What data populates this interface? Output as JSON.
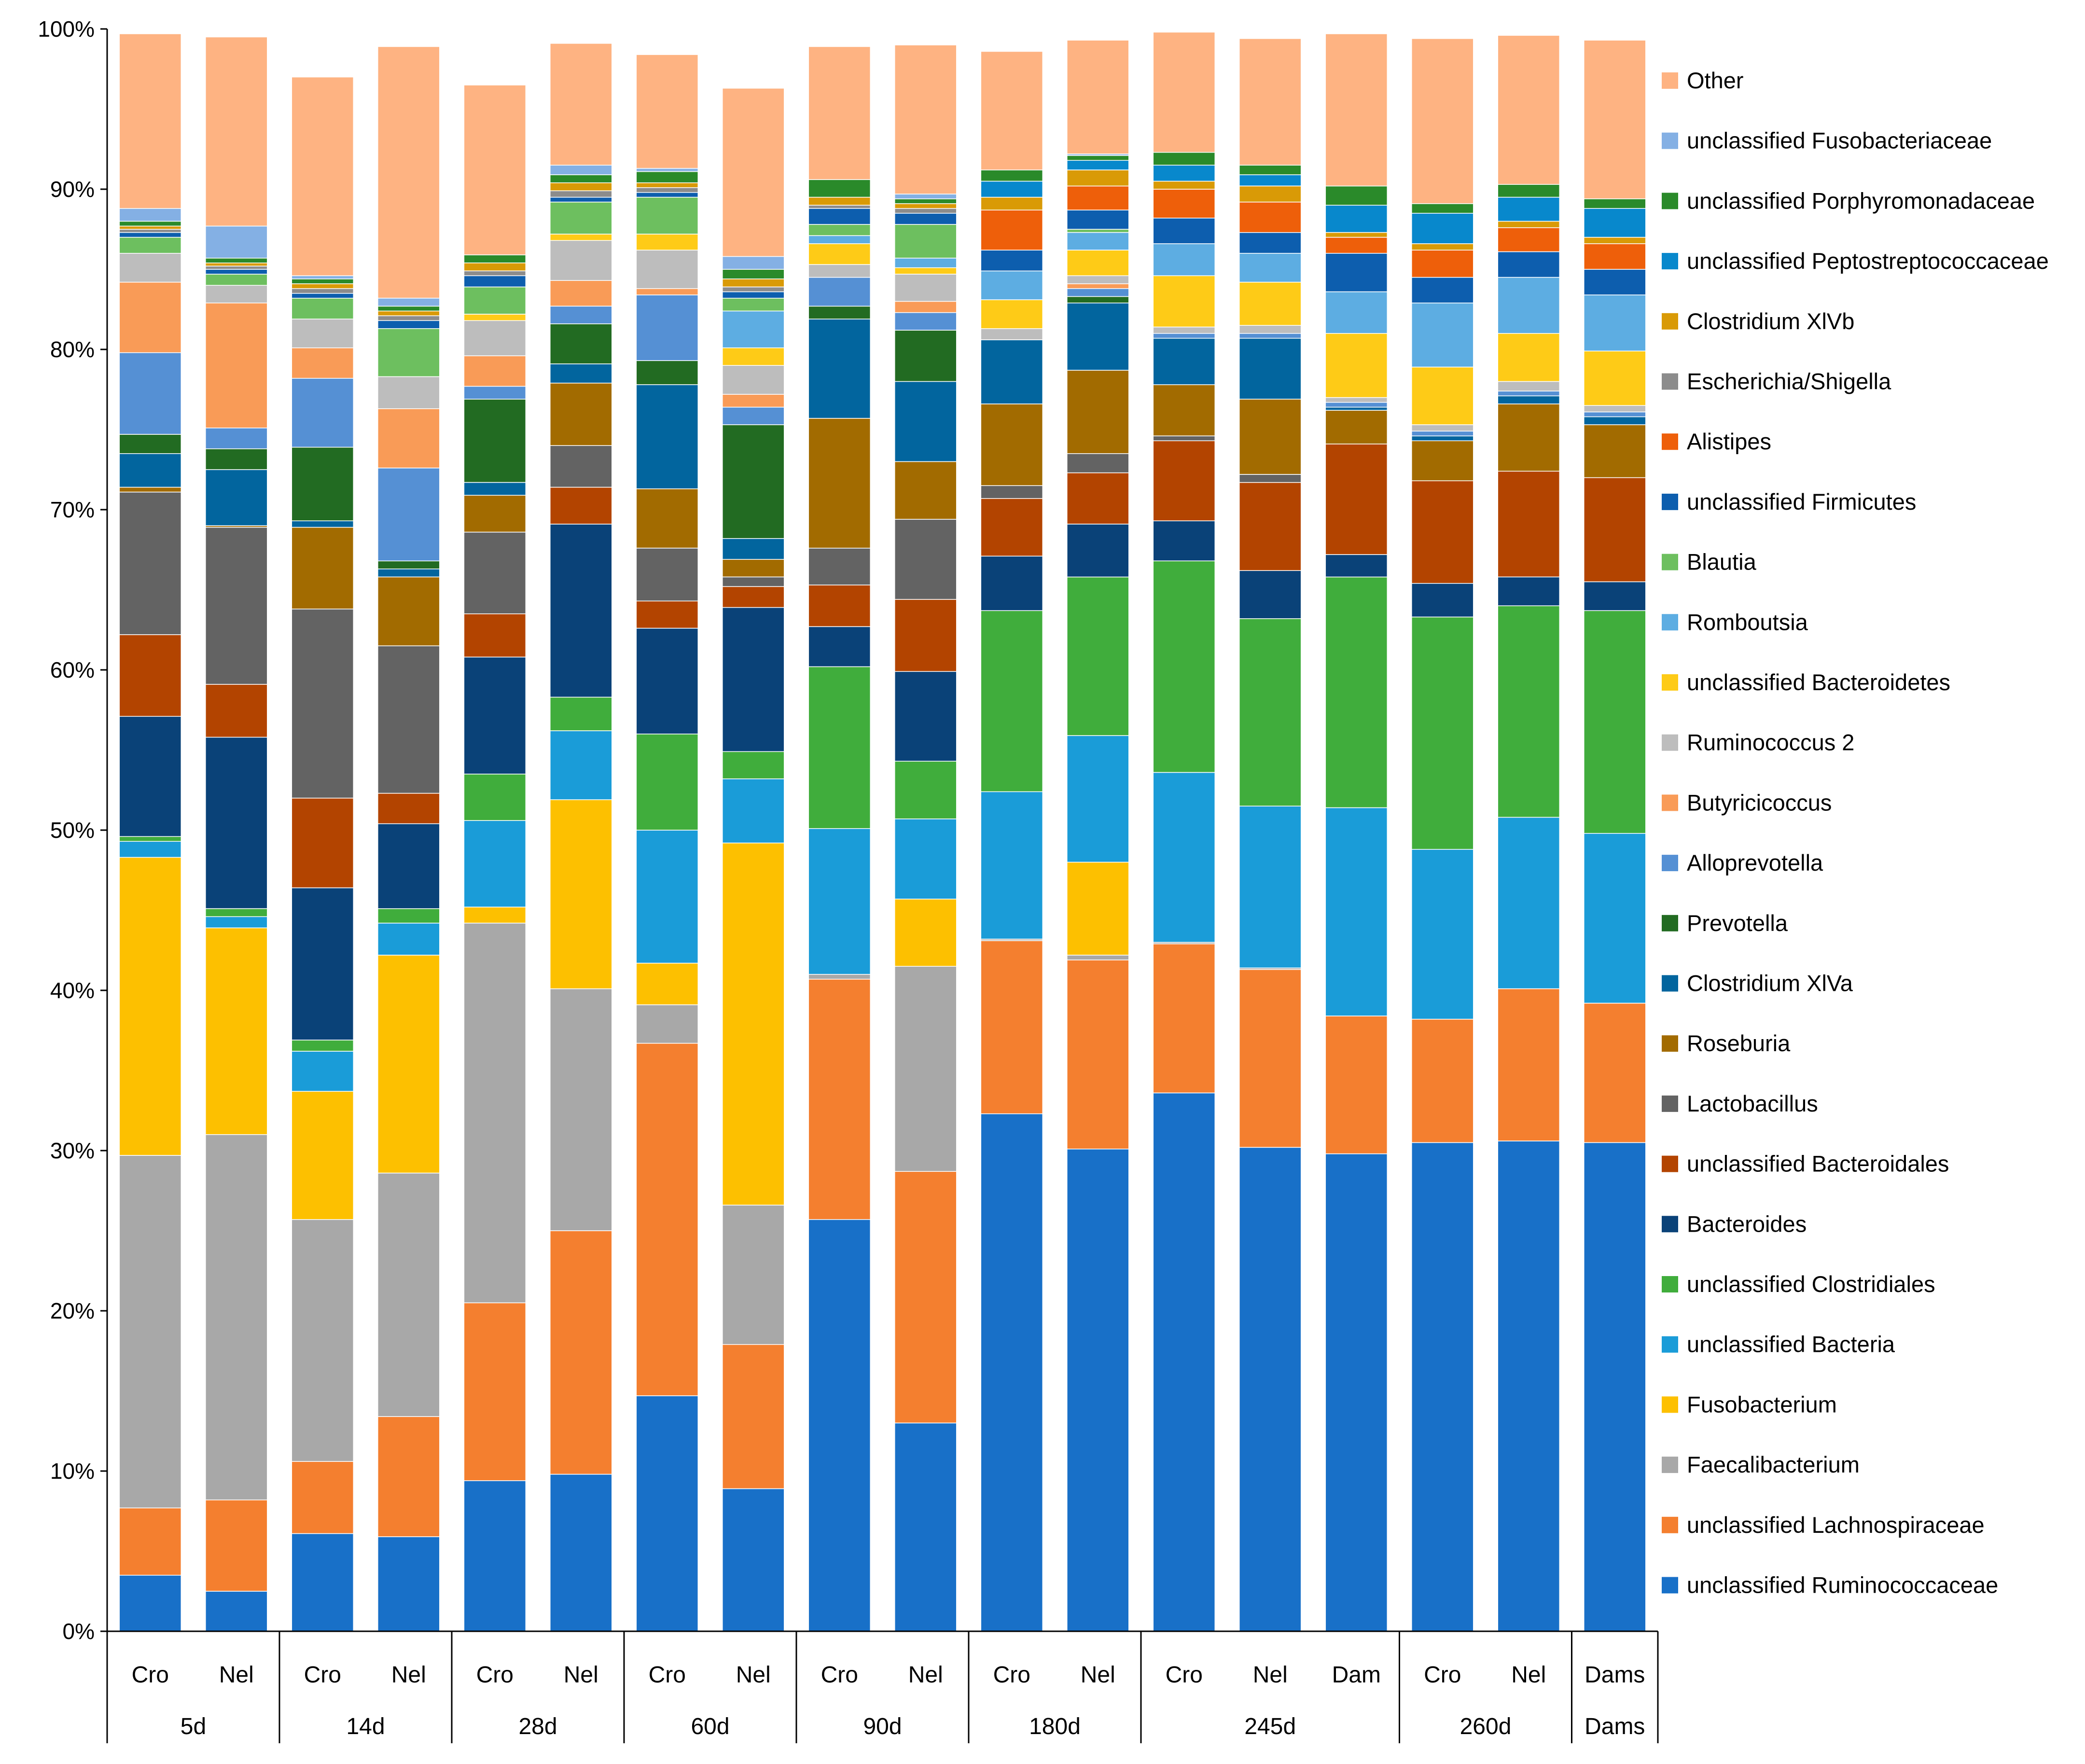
{
  "chart_data": {
    "type": "bar",
    "stacked": true,
    "title": "",
    "xlabel": "",
    "ylabel": "",
    "ylim": [
      0,
      100
    ],
    "yticks": [
      0,
      10,
      20,
      30,
      40,
      50,
      60,
      70,
      80,
      90,
      100
    ],
    "ytick_labels": [
      "0%",
      "10%",
      "20%",
      "30%",
      "40%",
      "50%",
      "60%",
      "70%",
      "80%",
      "90%",
      "100%"
    ],
    "grid": false,
    "legend_position": "right",
    "categories": [
      "Cro",
      "Nel",
      "Cro",
      "Nel",
      "Cro",
      "Nel",
      "Cro",
      "Nel",
      "Cro",
      "Nel",
      "Cro",
      "Nel",
      "Cro",
      "Nel",
      "Dam",
      "Cro",
      "Nel",
      "Dams"
    ],
    "groups": [
      {
        "label": "5d",
        "count": 2
      },
      {
        "label": "14d",
        "count": 2
      },
      {
        "label": "28d",
        "count": 2
      },
      {
        "label": "60d",
        "count": 2
      },
      {
        "label": "90d",
        "count": 2
      },
      {
        "label": "180d",
        "count": 2
      },
      {
        "label": "245d",
        "count": 3
      },
      {
        "label": "260d",
        "count": 2
      },
      {
        "label": "Dams",
        "count": 1
      }
    ],
    "series": [
      {
        "name": "unclassified Ruminococcaceae",
        "color": "#1870C8",
        "values": [
          3.5,
          2.5,
          6.1,
          5.9,
          9.4,
          9.8,
          14.7,
          8.9,
          25.7,
          13.0,
          32.3,
          30.1,
          33.6,
          30.2,
          29.8,
          30.5,
          30.6,
          30.5
        ]
      },
      {
        "name": "unclassified Lachnospiraceae",
        "color": "#F47F2F",
        "values": [
          4.2,
          5.7,
          4.5,
          7.5,
          11.1,
          15.2,
          22.0,
          9.0,
          15.0,
          15.7,
          10.8,
          11.8,
          9.3,
          11.1,
          8.6,
          7.7,
          9.5,
          8.7
        ]
      },
      {
        "name": "Faecalibacterium",
        "color": "#A8A8A8",
        "values": [
          22.0,
          22.8,
          15.1,
          15.2,
          23.7,
          15.1,
          2.4,
          8.7,
          0.3,
          12.8,
          0.1,
          0.3,
          0.1,
          0.1,
          0.0,
          0.0,
          0.0,
          0.0
        ]
      },
      {
        "name": "Fusobacterium",
        "color": "#FDC000",
        "values": [
          18.6,
          12.9,
          8.0,
          13.6,
          1.0,
          11.8,
          2.6,
          22.6,
          0.0,
          4.2,
          0.0,
          5.8,
          0.0,
          0.0,
          0.0,
          0.0,
          0.0,
          0.0
        ]
      },
      {
        "name": "unclassified Bacteria",
        "color": "#1A9CD8",
        "values": [
          1.0,
          0.7,
          2.5,
          2.0,
          5.4,
          4.3,
          8.3,
          4.0,
          9.1,
          5.0,
          9.2,
          7.9,
          10.6,
          10.1,
          13.0,
          10.6,
          10.7,
          10.6
        ]
      },
      {
        "name": "unclassified Clostridiales",
        "color": "#40AD3C",
        "values": [
          0.3,
          0.5,
          0.7,
          0.9,
          2.9,
          2.1,
          6.0,
          1.7,
          10.1,
          3.6,
          11.3,
          9.9,
          13.2,
          11.7,
          14.4,
          14.5,
          13.2,
          13.9
        ]
      },
      {
        "name": "Bacteroides",
        "color": "#0A4278",
        "values": [
          7.5,
          10.7,
          9.5,
          5.3,
          7.3,
          10.8,
          6.6,
          9.0,
          2.5,
          5.6,
          3.4,
          3.3,
          2.5,
          3.0,
          1.4,
          2.1,
          1.8,
          1.8
        ]
      },
      {
        "name": "unclassified Bacteroidales",
        "color": "#B34400",
        "values": [
          5.1,
          3.3,
          5.6,
          1.9,
          2.7,
          2.3,
          1.7,
          1.3,
          2.6,
          4.5,
          3.6,
          3.2,
          5.0,
          5.5,
          6.9,
          6.4,
          6.6,
          6.5
        ]
      },
      {
        "name": "Lactobacillus",
        "color": "#636363",
        "values": [
          8.9,
          9.8,
          11.8,
          9.2,
          5.1,
          2.6,
          3.3,
          0.6,
          2.3,
          5.0,
          0.8,
          1.2,
          0.3,
          0.5,
          0.0,
          0.0,
          0.0,
          0.0
        ]
      },
      {
        "name": "Roseburia",
        "color": "#A26B00",
        "values": [
          0.3,
          0.1,
          5.1,
          4.3,
          2.3,
          3.9,
          3.7,
          1.1,
          8.1,
          3.6,
          5.1,
          5.2,
          3.2,
          4.7,
          2.1,
          2.5,
          4.2,
          3.3
        ]
      },
      {
        "name": "Clostridium XlVa",
        "color": "#02659E",
        "values": [
          2.1,
          3.5,
          0.4,
          0.5,
          0.8,
          1.2,
          6.5,
          1.3,
          6.2,
          5.0,
          4.0,
          4.2,
          2.9,
          3.8,
          0.2,
          0.3,
          0.5,
          0.5
        ]
      },
      {
        "name": "Prevotella",
        "color": "#226B22",
        "values": [
          1.2,
          1.3,
          4.6,
          0.5,
          5.2,
          2.5,
          1.5,
          7.1,
          0.8,
          3.2,
          0.0,
          0.4,
          0.0,
          0.0,
          0.0,
          0.0,
          0.0,
          0.0
        ]
      },
      {
        "name": "Alloprevotella",
        "color": "#5590D4",
        "values": [
          5.1,
          1.3,
          4.3,
          5.8,
          0.8,
          1.1,
          4.1,
          1.1,
          1.8,
          1.1,
          0.0,
          0.5,
          0.3,
          0.3,
          0.3,
          0.3,
          0.3,
          0.3
        ]
      },
      {
        "name": "Butyricicoccus",
        "color": "#F99B57",
        "values": [
          4.4,
          7.8,
          1.9,
          3.7,
          1.9,
          1.6,
          0.4,
          0.8,
          0.0,
          0.7,
          0.0,
          0.3,
          0.0,
          0.0,
          0.0,
          0.0,
          0.0,
          0.0
        ]
      },
      {
        "name": "Ruminococcus 2",
        "color": "#BDBDBD",
        "values": [
          1.8,
          1.1,
          1.8,
          2.0,
          2.2,
          2.5,
          2.4,
          1.8,
          0.8,
          1.7,
          0.7,
          0.5,
          0.4,
          0.5,
          0.3,
          0.4,
          0.6,
          0.4
        ]
      },
      {
        "name": "unclassified Bacteroidetes",
        "color": "#FECB17",
        "values": [
          0.0,
          0.0,
          0.0,
          0.0,
          0.4,
          0.4,
          1.0,
          1.1,
          1.3,
          0.4,
          1.8,
          1.6,
          3.2,
          2.7,
          4.0,
          3.6,
          3.0,
          3.4
        ]
      },
      {
        "name": "Romboutsia",
        "color": "#5DADE2",
        "values": [
          0.0,
          0.0,
          0.0,
          0.0,
          0.0,
          0.0,
          0.0,
          2.3,
          0.5,
          0.6,
          1.8,
          1.1,
          2.0,
          1.8,
          2.6,
          4.0,
          3.5,
          3.5
        ]
      },
      {
        "name": "Blautia",
        "color": "#6DBF5F",
        "values": [
          1.0,
          0.7,
          1.3,
          3.0,
          1.7,
          2.0,
          2.3,
          0.8,
          0.7,
          2.1,
          0.0,
          0.2,
          0.0,
          0.0,
          0.0,
          0.0,
          0.0,
          0.0
        ]
      },
      {
        "name": "unclassified Firmicutes",
        "color": "#0D5EAE",
        "values": [
          0.3,
          0.3,
          0.3,
          0.5,
          0.7,
          0.3,
          0.3,
          0.4,
          1.0,
          0.7,
          1.3,
          1.2,
          1.6,
          1.3,
          2.4,
          1.6,
          1.6,
          1.6
        ]
      },
      {
        "name": "Alistipes",
        "color": "#EE5F0A",
        "values": [
          0.0,
          0.0,
          0.0,
          0.0,
          0.0,
          0.0,
          0.0,
          0.0,
          0.0,
          0.0,
          2.5,
          1.5,
          1.8,
          1.9,
          1.0,
          1.7,
          1.5,
          1.6
        ]
      },
      {
        "name": "Escherichia/Shigella",
        "color": "#8C8C8C",
        "values": [
          0.2,
          0.2,
          0.3,
          0.3,
          0.3,
          0.4,
          0.3,
          0.3,
          0.2,
          0.3,
          0.0,
          0.0,
          0.0,
          0.0,
          0.0,
          0.0,
          0.0,
          0.0
        ]
      },
      {
        "name": "Clostridium XlVb",
        "color": "#D99A06",
        "values": [
          0.2,
          0.2,
          0.3,
          0.3,
          0.5,
          0.5,
          0.3,
          0.5,
          0.5,
          0.3,
          0.8,
          1.0,
          0.5,
          1.0,
          0.3,
          0.4,
          0.4,
          0.4
        ]
      },
      {
        "name": "unclassified Peptostreptococcaceae",
        "color": "#0888CC",
        "values": [
          0.0,
          0.0,
          0.0,
          0.0,
          0.0,
          0.0,
          0.0,
          0.0,
          0.0,
          0.0,
          1.0,
          0.6,
          1.0,
          0.7,
          1.7,
          1.9,
          1.5,
          1.8
        ]
      },
      {
        "name": "unclassified Porphyromonadaceae",
        "color": "#2A8A2A",
        "values": [
          0.3,
          0.3,
          0.3,
          0.3,
          0.5,
          0.5,
          0.7,
          0.6,
          1.1,
          0.3,
          0.7,
          0.3,
          0.8,
          0.6,
          1.2,
          0.6,
          0.8,
          0.6
        ]
      },
      {
        "name": "unclassified Fusobacteriaceae",
        "color": "#84B0E4",
        "values": [
          0.8,
          2.0,
          0.2,
          0.5,
          0.0,
          0.6,
          0.2,
          0.8,
          0.0,
          0.3,
          0.0,
          0.1,
          0.0,
          0.0,
          0.0,
          0.0,
          0.0,
          0.0
        ]
      },
      {
        "name": "Other",
        "color": "#FEB382",
        "values": [
          10.9,
          11.8,
          12.4,
          15.7,
          10.6,
          7.6,
          7.1,
          10.5,
          8.3,
          9.3,
          7.4,
          7.1,
          7.5,
          7.9,
          9.5,
          10.3,
          9.3,
          9.9
        ]
      }
    ]
  }
}
